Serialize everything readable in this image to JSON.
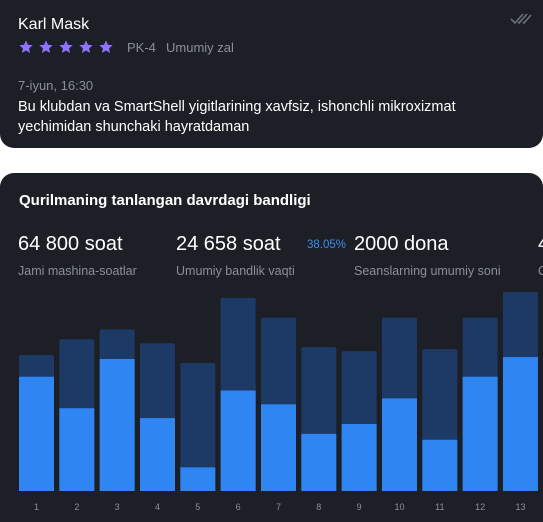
{
  "review": {
    "name": "Karl Mask",
    "rating": 5,
    "pc": "PK-4",
    "zone": "Umumiy zal",
    "date": "7-iyun, 16:30",
    "text": "Bu klubdan va SmartShell yigitlarining xavfsiz, ishonchli mikroxizmat yechimidan shunchaki hayratdaman"
  },
  "stats": {
    "title": "Qurilmaning tanlangan davrdagi bandligi",
    "metrics": [
      {
        "value": "64 800 soat",
        "label": "Jami mashina-soatlar"
      },
      {
        "value": "24 658 soat",
        "label": "Umumiy bandlik vaqti",
        "percent": "38.05%"
      },
      {
        "value": "2000 dona",
        "label": "Seanslarning umumiy soni"
      },
      {
        "value": "4",
        "label": "O"
      }
    ]
  },
  "colors": {
    "card_bg": "#1c1f26",
    "star": "#8f72ff",
    "bar_total": "#1d3a66",
    "bar_busy": "#2f86f2",
    "accent": "#3b8ef0"
  },
  "chart_data": {
    "type": "bar",
    "categories": [
      "1",
      "2",
      "3",
      "4",
      "5",
      "6",
      "7",
      "8",
      "9",
      "10",
      "11",
      "12",
      "13"
    ],
    "series": [
      {
        "values": [
          69,
          77,
          82,
          75,
          65,
          98,
          88,
          73,
          71,
          88,
          72,
          88,
          101
        ]
      },
      {
        "values": [
          58,
          42,
          67,
          37,
          12,
          51,
          44,
          29,
          34,
          47,
          26,
          58,
          68
        ]
      }
    ],
    "ylim": [
      0,
      101
    ]
  }
}
